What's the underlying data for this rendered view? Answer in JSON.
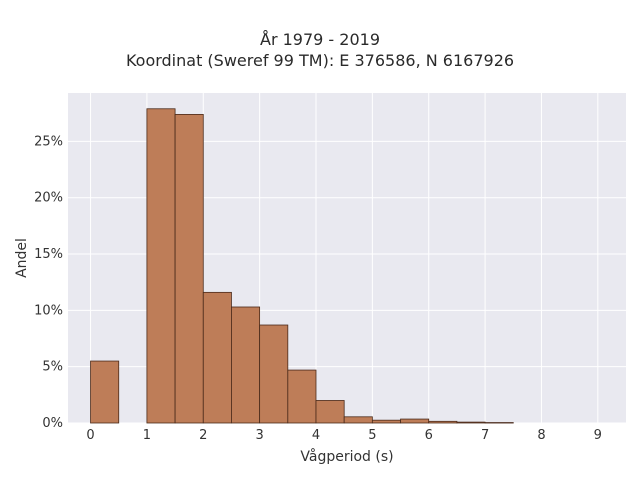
{
  "chart_data": {
    "type": "bar",
    "title": "År 1979 - 2019",
    "subtitle": "Koordinat (Sweref 99 TM): E 376586, N 6167926",
    "xlabel": "Vågperiod (s)",
    "ylabel": "Andel",
    "bin_width": 0.5,
    "bins": [
      {
        "start": 0.0,
        "value": 5.5
      },
      {
        "start": 0.5,
        "value": 0.0
      },
      {
        "start": 1.0,
        "value": 27.9
      },
      {
        "start": 1.5,
        "value": 27.4
      },
      {
        "start": 2.0,
        "value": 11.6
      },
      {
        "start": 2.5,
        "value": 10.3
      },
      {
        "start": 3.0,
        "value": 8.7
      },
      {
        "start": 3.5,
        "value": 4.7
      },
      {
        "start": 4.0,
        "value": 2.0
      },
      {
        "start": 4.5,
        "value": 0.55
      },
      {
        "start": 5.0,
        "value": 0.25
      },
      {
        "start": 5.5,
        "value": 0.35
      },
      {
        "start": 6.0,
        "value": 0.15
      },
      {
        "start": 6.5,
        "value": 0.08
      },
      {
        "start": 7.0,
        "value": 0.04
      }
    ],
    "xlim": [
      -0.4,
      9.5
    ],
    "ylim": [
      0,
      29.3
    ],
    "xticks": [
      0,
      1,
      2,
      3,
      4,
      5,
      6,
      7,
      8,
      9
    ],
    "yticks": [
      0,
      5,
      10,
      15,
      20,
      25
    ],
    "ytick_labels": [
      "0%",
      "5%",
      "10%",
      "15%",
      "20%",
      "25%"
    ],
    "grid": true,
    "colors": {
      "bar_fill": "#be7d58",
      "bar_stroke": "#4a2a1a",
      "plot_bg": "#e9e9f0",
      "grid": "#ffffff"
    }
  }
}
